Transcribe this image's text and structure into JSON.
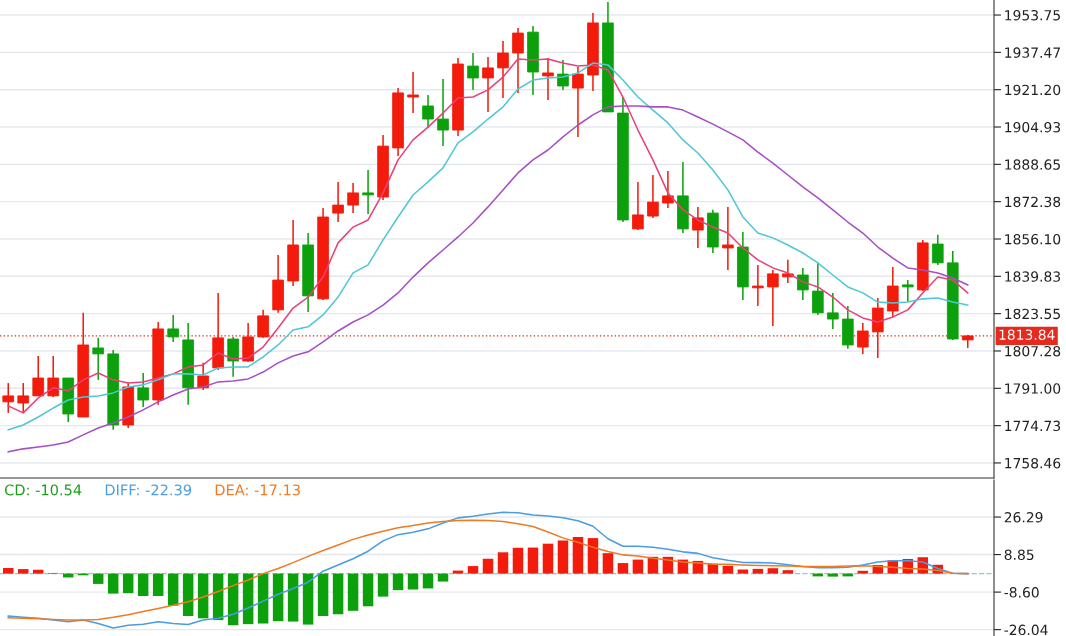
{
  "chart_data": [
    {
      "type": "candlestick",
      "categories": [
        null,
        null,
        null,
        null,
        null,
        null,
        null,
        null,
        null,
        null,
        null,
        null,
        null,
        null,
        null,
        null,
        null,
        null,
        null,
        null,
        null,
        null,
        null,
        null,
        null,
        null,
        null,
        null,
        null,
        null,
        null,
        null,
        null,
        null,
        null,
        null,
        null,
        null,
        null,
        null,
        null,
        null,
        null,
        null,
        null,
        null,
        null,
        null,
        null,
        null,
        null,
        null,
        null,
        null,
        null,
        null,
        null,
        null,
        null,
        null,
        null,
        null,
        null,
        null,
        null
      ],
      "ohlc": [
        [
          1785.1,
          1793.3,
          1780.3,
          1787.7
        ],
        [
          1784.6,
          1793.3,
          1780.3,
          1787.7
        ],
        [
          1787.7,
          1805.1,
          1787.7,
          1795.5
        ],
        [
          1787.7,
          1805.1,
          1787.2,
          1795.5
        ],
        [
          1795.5,
          1795.5,
          1776.3,
          1779.8
        ],
        [
          1778.5,
          1823.9,
          1778.5,
          1809.9
        ],
        [
          1808.6,
          1813.0,
          1794.7,
          1806.0
        ],
        [
          1806.0,
          1807.7,
          1772.9,
          1775.0
        ],
        [
          1775.0,
          1793.3,
          1773.7,
          1791.6
        ],
        [
          1791.2,
          1797.7,
          1782.9,
          1785.9
        ],
        [
          1785.9,
          1819.9,
          1783.8,
          1816.9
        ],
        [
          1816.9,
          1823.0,
          1811.2,
          1813.4
        ],
        [
          1812.1,
          1819.5,
          1783.8,
          1791.2
        ],
        [
          1791.2,
          1802.1,
          1790.3,
          1796.4
        ],
        [
          1799.9,
          1832.6,
          1799.0,
          1813.0
        ],
        [
          1812.5,
          1813.4,
          1796.0,
          1802.9
        ],
        [
          1802.9,
          1819.5,
          1802.5,
          1813.4
        ],
        [
          1813.4,
          1825.2,
          1813.0,
          1822.6
        ],
        [
          1825.2,
          1849.1,
          1823.9,
          1838.2
        ],
        [
          1837.8,
          1864.4,
          1835.6,
          1853.5
        ],
        [
          1853.5,
          1858.7,
          1824.3,
          1831.3
        ],
        [
          1830.0,
          1869.6,
          1829.5,
          1865.7
        ],
        [
          1867.4,
          1881.0,
          1863.5,
          1870.9
        ],
        [
          1870.9,
          1880.5,
          1867.4,
          1876.2
        ],
        [
          1876.2,
          1886.2,
          1867.0,
          1875.3
        ],
        [
          1874.4,
          1901.4,
          1873.1,
          1896.6
        ],
        [
          1895.8,
          1921.9,
          1892.3,
          1919.8
        ],
        [
          1918.0,
          1928.9,
          1911.0,
          1918.9
        ],
        [
          1914.1,
          1918.9,
          1904.5,
          1908.4
        ],
        [
          1908.4,
          1925.9,
          1896.6,
          1903.6
        ],
        [
          1903.6,
          1935.0,
          1901.0,
          1932.4
        ],
        [
          1931.5,
          1937.2,
          1921.1,
          1926.3
        ],
        [
          1926.3,
          1935.4,
          1911.5,
          1930.7
        ],
        [
          1930.7,
          1942.4,
          1917.6,
          1937.2
        ],
        [
          1937.2,
          1948.1,
          1919.8,
          1945.9
        ],
        [
          1946.3,
          1949.0,
          1918.9,
          1928.9
        ],
        [
          1927.2,
          1935.0,
          1916.7,
          1928.5
        ],
        [
          1928.0,
          1934.1,
          1921.1,
          1922.8
        ],
        [
          1921.9,
          1931.1,
          1900.6,
          1928.0
        ],
        [
          1927.6,
          1954.6,
          1920.6,
          1950.3
        ],
        [
          1950.3,
          1959.4,
          1911.5,
          1911.5
        ],
        [
          1911.0,
          1918.0,
          1863.5,
          1864.4
        ],
        [
          1860.5,
          1881.0,
          1860.0,
          1866.6
        ],
        [
          1866.1,
          1884.0,
          1865.3,
          1872.2
        ],
        [
          1871.8,
          1885.8,
          1869.6,
          1874.9
        ],
        [
          1874.9,
          1889.7,
          1858.7,
          1860.5
        ],
        [
          1860.0,
          1870.1,
          1852.2,
          1865.3
        ],
        [
          1867.4,
          1868.8,
          1850.0,
          1852.6
        ],
        [
          1852.2,
          1870.1,
          1842.6,
          1853.5
        ],
        [
          1852.6,
          1859.2,
          1829.5,
          1835.2
        ],
        [
          1834.8,
          1844.8,
          1826.9,
          1835.6
        ],
        [
          1835.2,
          1842.6,
          1818.2,
          1840.9
        ],
        [
          1839.6,
          1847.0,
          1836.9,
          1840.9
        ],
        [
          1840.4,
          1843.5,
          1829.5,
          1833.9
        ],
        [
          1833.4,
          1845.7,
          1823.0,
          1823.9
        ],
        [
          1823.9,
          1832.6,
          1816.9,
          1821.2
        ],
        [
          1821.2,
          1826.9,
          1808.2,
          1809.9
        ],
        [
          1809.0,
          1819.5,
          1806.0,
          1816.0
        ],
        [
          1815.6,
          1830.4,
          1804.2,
          1826.0
        ],
        [
          1824.7,
          1843.9,
          1822.1,
          1835.6
        ],
        [
          1836.1,
          1838.2,
          1828.7,
          1835.2
        ],
        [
          1833.9,
          1855.7,
          1833.4,
          1854.4
        ],
        [
          1853.9,
          1857.9,
          1844.8,
          1845.7
        ],
        [
          1845.7,
          1850.9,
          1812.1,
          1812.5
        ],
        [
          1812.1,
          1814.3,
          1808.6,
          1813.84
        ]
      ],
      "colors": [
        "#f21b0c",
        "#f21b0c",
        "#f21b0c",
        "#f21b0c",
        "#0ca10c",
        "#f21b0c",
        "#0ca10c",
        "#0ca10c",
        "#f21b0c",
        "#0ca10c",
        "#f21b0c",
        "#0ca10c",
        "#0ca10c",
        "#f21b0c",
        "#f21b0c",
        "#0ca10c",
        "#f21b0c",
        "#f21b0c",
        "#f21b0c",
        "#f21b0c",
        "#0ca10c",
        "#f21b0c",
        "#f21b0c",
        "#f21b0c",
        "#0ca10c",
        "#f21b0c",
        "#f21b0c",
        "#f21b0c",
        "#0ca10c",
        "#0ca10c",
        "#f21b0c",
        "#0ca10c",
        "#f21b0c",
        "#f21b0c",
        "#f21b0c",
        "#0ca10c",
        "#f21b0c",
        "#0ca10c",
        "#f21b0c",
        "#f21b0c",
        "#0ca10c",
        "#0ca10c",
        "#f21b0c",
        "#f21b0c",
        "#f21b0c",
        "#0ca10c",
        "#f21b0c",
        "#0ca10c",
        "#f21b0c",
        "#0ca10c",
        "#f21b0c",
        "#f21b0c",
        "#f21b0c",
        "#0ca10c",
        "#0ca10c",
        "#0ca10c",
        "#0ca10c",
        "#f21b0c",
        "#f21b0c",
        "#f21b0c",
        "#0ca10c",
        "#f21b0c",
        "#0ca10c",
        "#0ca10c",
        "#f21b0c"
      ],
      "series": [
        {
          "type": "line",
          "color": "#e8407a",
          "values": [
            1783.3,
            1780.3,
            1786.8,
            1791.2,
            1789.9,
            1794.7,
            1797.7,
            1794.7,
            1793.3,
            1793.8,
            1795.5,
            1797.3,
            1800.3,
            1801.2,
            1806.4,
            1803.8,
            1804.2,
            1809.0,
            1817.3,
            1826.0,
            1830.8,
            1839.5,
            1854.4,
            1861.3,
            1864.4,
            1876.2,
            1890.6,
            1899.3,
            1904.9,
            1911.0,
            1917.6,
            1918.0,
            1921.1,
            1926.7,
            1934.6,
            1934.1,
            1934.6,
            1932.8,
            1931.5,
            1932.0,
            1929.8,
            1918.0,
            1903.6,
            1890.6,
            1876.2,
            1868.8,
            1864.4,
            1861.3,
            1858.7,
            1852.2,
            1847.0,
            1843.5,
            1841.3,
            1837.4,
            1835.2,
            1830.8,
            1825.2,
            1821.7,
            1819.9,
            1822.1,
            1825.2,
            1832.6,
            1839.5,
            1838.2,
            1832.6
          ]
        },
        {
          "type": "line",
          "color": "#4fc7d4",
          "values": [
            1772.9,
            1775.0,
            1778.5,
            1782.4,
            1785.9,
            1787.2,
            1787.7,
            1789.0,
            1791.6,
            1792.5,
            1794.7,
            1797.3,
            1797.3,
            1796.8,
            1799.9,
            1800.3,
            1800.3,
            1804.7,
            1809.9,
            1816.4,
            1817.8,
            1823.0,
            1830.8,
            1841.3,
            1844.8,
            1855.7,
            1865.7,
            1875.3,
            1881.0,
            1887.1,
            1898.0,
            1902.8,
            1908.4,
            1913.7,
            1921.5,
            1925.4,
            1926.3,
            1926.7,
            1928.5,
            1932.8,
            1932.0,
            1925.4,
            1918.0,
            1912.3,
            1906.7,
            1899.3,
            1893.6,
            1886.2,
            1877.5,
            1865.7,
            1858.7,
            1856.6,
            1853.5,
            1850.0,
            1845.7,
            1840.4,
            1835.2,
            1832.6,
            1828.6,
            1828.2,
            1828.6,
            1830.0,
            1830.4,
            1828.6,
            1827.3
          ]
        },
        {
          "type": "line",
          "color": "#a64fc4",
          "values": [
            1763.3,
            1764.6,
            1765.4,
            1766.3,
            1767.6,
            1770.7,
            1773.7,
            1775.9,
            1778.5,
            1781.6,
            1785.1,
            1788.1,
            1790.7,
            1791.6,
            1793.8,
            1794.2,
            1795.1,
            1798.1,
            1802.1,
            1805.1,
            1806.9,
            1811.2,
            1816.0,
            1819.9,
            1823.0,
            1827.3,
            1832.6,
            1839.5,
            1845.7,
            1851.3,
            1857.0,
            1863.1,
            1870.1,
            1877.5,
            1884.9,
            1890.6,
            1894.9,
            1900.6,
            1905.8,
            1910.2,
            1913.7,
            1914.1,
            1914.1,
            1913.7,
            1913.7,
            1912.3,
            1909.3,
            1906.2,
            1902.8,
            1899.3,
            1894.0,
            1889.2,
            1884.0,
            1878.8,
            1874.0,
            1868.8,
            1863.5,
            1858.7,
            1852.6,
            1847.8,
            1843.5,
            1842.6,
            1841.3,
            1839.1,
            1836.1
          ]
        }
      ],
      "ylim": [
        1751.9,
        1960.3
      ],
      "yticks": [
        1953.75,
        1937.47,
        {
          "value": 1921.2,
          "label": "1921.20"
        },
        1904.93,
        1888.65,
        1872.38,
        {
          "value": 1856.1,
          "label": "1856.10"
        },
        1839.83,
        1823.55,
        1807.28,
        {
          "value": 1791.0,
          "label": "1791.00"
        },
        1774.73,
        1758.46
      ],
      "ref_lines": [
        {
          "axis": "y",
          "value": 1813.84,
          "label": "1813.84",
          "color": "#e62a1e",
          "line_style": "dotted"
        }
      ],
      "grid": "y",
      "tick_labels": "y"
    },
    {
      "type": "bar",
      "categories": [
        null,
        null,
        null,
        null,
        null,
        null,
        null,
        null,
        null,
        null,
        null,
        null,
        null,
        null,
        null,
        null,
        null,
        null,
        null,
        null,
        null,
        null,
        null,
        null,
        null,
        null,
        null,
        null,
        null,
        null,
        null,
        null,
        null,
        null,
        null,
        null,
        null,
        null,
        null,
        null,
        null,
        null,
        null,
        null,
        null,
        null,
        null,
        null,
        null,
        null,
        null,
        null,
        null,
        null,
        null,
        null,
        null,
        null,
        null,
        null,
        null,
        null,
        null,
        null,
        null
      ],
      "series": [
        {
          "name": "CD: -10.54",
          "type": "bar",
          "color": "#1a9e1a",
          "values": [
            2.6,
            2.1,
            1.8,
            0.3,
            -1.8,
            -0.8,
            -4.8,
            -9.3,
            -9.1,
            -10.4,
            -10.4,
            -14.9,
            -19.7,
            -20.8,
            -21.6,
            -24.0,
            -23.5,
            -23.2,
            -22.1,
            -22.3,
            -23.7,
            -19.7,
            -18.9,
            -17.3,
            -15.2,
            -10.7,
            -7.7,
            -7.4,
            -6.9,
            -3.7,
            1.4,
            3.5,
            6.9,
            9.9,
            12.0,
            12.1,
            13.9,
            15.4,
            17.0,
            16.5,
            9.5,
            4.9,
            6.5,
            7.8,
            7.8,
            6.5,
            5.9,
            4.6,
            3.6,
            1.9,
            2.2,
            2.5,
            1.6,
            null,
            -1.3,
            -1.4,
            -1.3,
            1.3,
            4.0,
            6.2,
            6.8,
            7.6,
            4.1,
            null,
            null
          ],
          "colors": [
            "#f21b0c",
            "#f21b0c",
            "#f21b0c",
            "#f21b0c",
            "#0ca10c",
            "#0ca10c",
            "#0ca10c",
            "#0ca10c",
            "#0ca10c",
            "#0ca10c",
            "#0ca10c",
            "#0ca10c",
            "#0ca10c",
            "#0ca10c",
            "#0ca10c",
            "#0ca10c",
            "#0ca10c",
            "#0ca10c",
            "#0ca10c",
            "#0ca10c",
            "#0ca10c",
            "#0ca10c",
            "#0ca10c",
            "#0ca10c",
            "#0ca10c",
            "#0ca10c",
            "#0ca10c",
            "#0ca10c",
            "#0ca10c",
            "#0ca10c",
            "#f21b0c",
            "#f21b0c",
            "#f21b0c",
            "#f21b0c",
            "#f21b0c",
            "#f21b0c",
            "#f21b0c",
            "#f21b0c",
            "#f21b0c",
            "#f21b0c",
            "#f21b0c",
            "#f21b0c",
            "#f21b0c",
            "#f21b0c",
            "#f21b0c",
            "#f21b0c",
            "#f21b0c",
            "#f21b0c",
            "#f21b0c",
            "#f21b0c",
            "#f21b0c",
            "#f21b0c",
            "#f21b0c",
            "#f21b0c",
            "#0ca10c",
            "#0ca10c",
            "#0ca10c",
            "#f21b0c",
            "#f21b0c",
            "#f21b0c",
            "#f21b0c",
            "#f21b0c",
            "#f21b0c",
            "#f21b0c",
            "#f21b0c"
          ]
        },
        {
          "name": "DIFF: -22.39",
          "type": "line",
          "color": "#4a9de0",
          "values": [
            -19.7,
            -20.3,
            -20.8,
            -21.6,
            -22.4,
            -21.6,
            -23.2,
            -25.3,
            -24.0,
            -23.5,
            -22.4,
            -23.2,
            -23.7,
            -21.6,
            -20.8,
            -18.9,
            -16.0,
            -12.8,
            -9.6,
            -6.9,
            -4.0,
            1.1,
            4.0,
            6.9,
            10.4,
            15.2,
            18.1,
            19.2,
            20.8,
            23.5,
            25.9,
            26.7,
            27.7,
            28.5,
            28.3,
            27.2,
            26.8,
            26.0,
            24.6,
            22.0,
            16.2,
            12.7,
            12.7,
            12.2,
            11.3,
            10.1,
            9.4,
            7.4,
            6.2,
            5.2,
            5.1,
            4.9,
            4.1,
            3.3,
            2.7,
            2.7,
            3.0,
            4.0,
            5.4,
            6.0,
            6.0,
            5.4,
            2.4,
            0.2,
            0.0
          ]
        },
        {
          "name": "DEA: -17.13",
          "type": "line",
          "color": "#f07a22",
          "values": [
            -20.5,
            -20.8,
            -21.0,
            -21.3,
            -21.6,
            -21.6,
            -21.3,
            -20.3,
            -19.1,
            -17.6,
            -16.2,
            -14.7,
            -13.1,
            -10.9,
            -8.3,
            -5.6,
            -3.0,
            0.0,
            2.4,
            5.1,
            8.0,
            10.7,
            13.3,
            15.9,
            17.9,
            19.7,
            21.3,
            22.4,
            23.5,
            24.2,
            24.7,
            24.8,
            24.7,
            24.2,
            23.2,
            21.9,
            19.3,
            16.6,
            14.6,
            12.2,
            10.3,
            8.7,
            8.2,
            7.1,
            6.3,
            5.4,
            4.9,
            4.4,
            4.3,
            4.0,
            3.8,
            3.6,
            3.5,
            3.3,
            3.3,
            3.3,
            3.5,
            3.6,
            3.3,
            2.9,
            2.4,
            2.1,
            1.4,
            0.2,
            0.0
          ]
        }
      ],
      "ylim": [
        -29.0,
        43.5
      ],
      "yticks": [
        26.29,
        8.85,
        {
          "value": -8.6,
          "label": "-8.60"
        },
        -26.04
      ],
      "ref_lines": [
        {
          "axis": "y",
          "value": 0,
          "color": "#8fc8d8",
          "line_style": "dashed"
        }
      ],
      "legend": "top left",
      "grid": "y",
      "tick_labels": "y"
    }
  ]
}
